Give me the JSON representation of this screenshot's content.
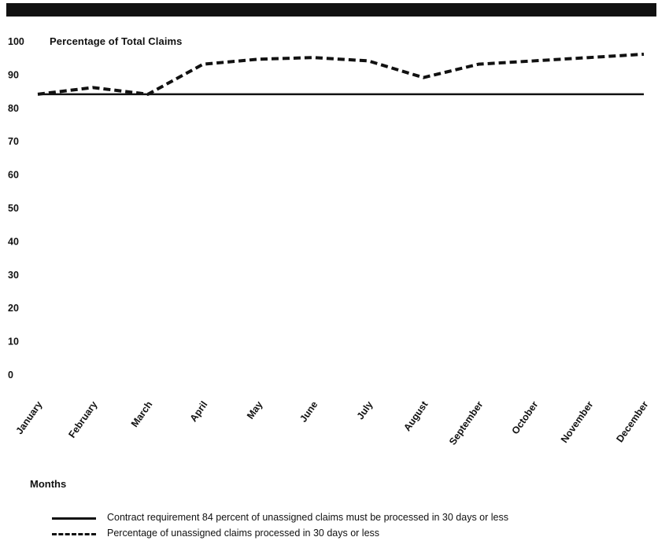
{
  "chart_data": {
    "type": "line",
    "ylabel": "Percentage of Total Claims",
    "xlabel": "Months",
    "ylim": [
      0,
      100
    ],
    "yticks": [
      "100",
      "90",
      "80",
      "70",
      "60",
      "50",
      "40",
      "30",
      "20",
      "10",
      "0"
    ],
    "categories": [
      "January",
      "February",
      "March",
      "April",
      "May",
      "June",
      "July",
      "August",
      "September",
      "October",
      "November",
      "December"
    ],
    "series": [
      {
        "name": "Contract requirement  84 percent of unassigned claims must be processed in 30 days or less",
        "style": "solid",
        "values": [
          84,
          84,
          84,
          84,
          84,
          84,
          84,
          84,
          84,
          84,
          84,
          84
        ]
      },
      {
        "name": "Percentage of unassigned claims processed in 30 days or less",
        "style": "dashed",
        "values": [
          84,
          86,
          84,
          93,
          94.5,
          95,
          94,
          89,
          93,
          94,
          95,
          96
        ]
      }
    ],
    "grid": false,
    "legend_position": "bottom"
  },
  "colors": {
    "ink": "#111111",
    "background": "#ffffff"
  }
}
